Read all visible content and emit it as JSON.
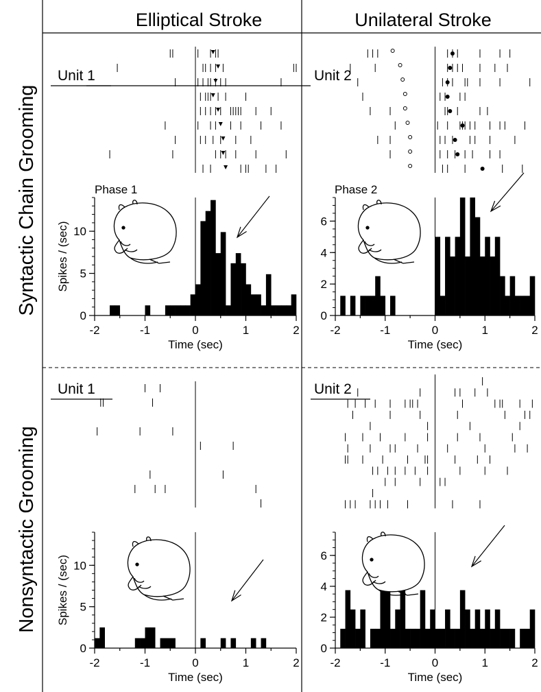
{
  "columns": [
    "Elliptical Stroke",
    "Unilateral Stroke"
  ],
  "rows": [
    "Syntactic Chain Grooming",
    "Nonsyntactic Grooming"
  ],
  "colors": {
    "ink": "#000000",
    "background": "#ffffff"
  },
  "icons": [
    "rat-grooming-icon",
    "arrow-icon"
  ],
  "chart_data": [
    {
      "type": "bar",
      "panel": "syntactic-elliptical",
      "unit_label": "Unit 1",
      "phase_label": "Phase 1",
      "ylabel": "Spikes / (sec)",
      "xlabel": "Time (sec)",
      "xlim": [
        -2,
        2
      ],
      "ylim": [
        0,
        14
      ],
      "xticks": [
        -2,
        -1,
        0,
        1,
        2
      ],
      "yticks": [
        0,
        5,
        10
      ],
      "bin_width": 0.1,
      "bins": [
        {
          "x": -1.7,
          "y": 1.2
        },
        {
          "x": -1.6,
          "y": 1.2
        },
        {
          "x": -1.0,
          "y": 1.2
        },
        {
          "x": -0.6,
          "y": 1.2
        },
        {
          "x": -0.5,
          "y": 1.2
        },
        {
          "x": -0.4,
          "y": 1.2
        },
        {
          "x": -0.3,
          "y": 1.2
        },
        {
          "x": -0.2,
          "y": 1.2
        },
        {
          "x": -0.1,
          "y": 2.5
        },
        {
          "x": 0.0,
          "y": 3.7
        },
        {
          "x": 0.1,
          "y": 11.2
        },
        {
          "x": 0.2,
          "y": 12.4
        },
        {
          "x": 0.3,
          "y": 13.7
        },
        {
          "x": 0.4,
          "y": 7.4
        },
        {
          "x": 0.5,
          "y": 9.9
        },
        {
          "x": 0.6,
          "y": 1.2
        },
        {
          "x": 0.7,
          "y": 6.2
        },
        {
          "x": 0.8,
          "y": 7.4
        },
        {
          "x": 0.9,
          "y": 6.2
        },
        {
          "x": 1.0,
          "y": 3.7
        },
        {
          "x": 1.1,
          "y": 2.5
        },
        {
          "x": 1.2,
          "y": 2.5
        },
        {
          "x": 1.3,
          "y": 1.2
        },
        {
          "x": 1.4,
          "y": 4.9
        },
        {
          "x": 1.5,
          "y": 1.2
        },
        {
          "x": 1.6,
          "y": 1.2
        },
        {
          "x": 1.7,
          "y": 1.2
        },
        {
          "x": 1.8,
          "y": 1.2
        },
        {
          "x": 1.9,
          "y": 2.5
        }
      ],
      "raster": [
        {
          "spikes": [
            -0.5,
            -0.45,
            0.05,
            0.3,
            0.4,
            0.45
          ],
          "marker": 0.35
        },
        {
          "spikes": [
            -1.55,
            0.15,
            0.2,
            0.3,
            0.4,
            0.55,
            1.95,
            2.0
          ],
          "marker": 0.45
        },
        {
          "spikes": [
            -0.4,
            0.05,
            0.15,
            0.25,
            0.3,
            0.4,
            0.5,
            0.6,
            1.7
          ],
          "marker": 0.4
        },
        {
          "spikes": [
            0.1,
            0.2,
            0.25,
            0.3,
            0.45,
            0.6,
            1.0
          ],
          "marker": 0.35
        },
        {
          "spikes": [
            0.0,
            0.1,
            0.2,
            0.3,
            0.4,
            0.5,
            0.7,
            0.75,
            0.8,
            0.85,
            0.9,
            1.2,
            1.5
          ],
          "marker": 0.45
        },
        {
          "spikes": [
            -0.6,
            0.05,
            0.3,
            0.4,
            0.7,
            0.9,
            1.3,
            1.7
          ],
          "marker": 0.5
        },
        {
          "spikes": [
            -0.4,
            0.1,
            0.2,
            0.35,
            0.5,
            0.8,
            1.1
          ],
          "marker": 0.55
        },
        {
          "spikes": [
            -1.7,
            -0.45,
            0.0,
            0.4,
            0.5,
            0.6,
            0.8,
            1.2,
            1.8
          ],
          "marker": 0.55
        },
        {
          "spikes": [
            0.15,
            0.3,
            0.9,
            1.0,
            1.05,
            1.4,
            1.6
          ],
          "marker": 0.6
        }
      ]
    },
    {
      "type": "bar",
      "panel": "syntactic-unilateral",
      "unit_label": "Unit 2",
      "phase_label": "Phase 2",
      "ylabel": "",
      "xlabel": "Time (sec)",
      "xlim": [
        -2,
        2
      ],
      "ylim": [
        0,
        7.5
      ],
      "xticks": [
        -2,
        -1,
        0,
        1,
        2
      ],
      "yticks": [
        0,
        2,
        4,
        6
      ],
      "bin_width": 0.1,
      "bins": [
        {
          "x": -1.9,
          "y": 1.25
        },
        {
          "x": -1.7,
          "y": 1.25
        },
        {
          "x": -1.5,
          "y": 1.25
        },
        {
          "x": -1.4,
          "y": 1.25
        },
        {
          "x": -1.3,
          "y": 1.25
        },
        {
          "x": -1.2,
          "y": 2.5
        },
        {
          "x": -1.1,
          "y": 1.25
        },
        {
          "x": -0.9,
          "y": 1.25
        },
        {
          "x": 0.0,
          "y": 5.0
        },
        {
          "x": 0.1,
          "y": 1.25
        },
        {
          "x": 0.2,
          "y": 5.0
        },
        {
          "x": 0.3,
          "y": 3.75
        },
        {
          "x": 0.4,
          "y": 5.0
        },
        {
          "x": 0.5,
          "y": 7.5
        },
        {
          "x": 0.6,
          "y": 3.75
        },
        {
          "x": 0.7,
          "y": 7.5
        },
        {
          "x": 0.8,
          "y": 6.25
        },
        {
          "x": 0.9,
          "y": 3.75
        },
        {
          "x": 1.0,
          "y": 5.0
        },
        {
          "x": 1.1,
          "y": 3.75
        },
        {
          "x": 1.2,
          "y": 5.0
        },
        {
          "x": 1.3,
          "y": 2.5
        },
        {
          "x": 1.4,
          "y": 1.25
        },
        {
          "x": 1.5,
          "y": 2.5
        },
        {
          "x": 1.6,
          "y": 1.25
        },
        {
          "x": 1.7,
          "y": 1.25
        },
        {
          "x": 1.8,
          "y": 1.25
        },
        {
          "x": 1.9,
          "y": 2.5
        }
      ],
      "raster": [
        {
          "spikes": [
            -1.35,
            -1.25,
            -1.15,
            0.25,
            0.35,
            0.45,
            0.9,
            1.3,
            1.5
          ],
          "marker": 0.35,
          "start": -0.85
        },
        {
          "spikes": [
            -1.7,
            -1.2,
            0.25,
            0.35,
            0.45,
            0.55,
            0.9,
            1.2,
            1.45
          ],
          "marker": 0.3,
          "start": -0.7
        },
        {
          "spikes": [
            -1.55,
            0.15,
            0.25,
            0.35,
            0.6,
            0.65,
            0.9,
            1.3,
            1.9
          ],
          "marker": 0.25,
          "start": -0.65
        },
        {
          "spikes": [
            -1.45,
            0.1,
            0.2,
            0.5,
            0.6
          ],
          "marker": 0.25,
          "start": -0.6
        },
        {
          "spikes": [
            -1.3,
            -0.9,
            0.2,
            0.25,
            0.45,
            0.9,
            1.05
          ],
          "marker": 0.3,
          "start": -0.6
        },
        {
          "spikes": [
            -0.8,
            0.05,
            0.25,
            0.5,
            0.55,
            0.6,
            0.7,
            0.8,
            1.1,
            1.3,
            1.4,
            1.8
          ],
          "marker": 0.55,
          "start": -0.55
        },
        {
          "spikes": [
            -1.15,
            -0.9,
            0.1,
            0.2,
            0.35,
            0.7,
            0.8,
            1.1,
            1.6
          ],
          "marker": 0.4,
          "start": -0.5
        },
        {
          "spikes": [
            -0.9,
            0.1,
            0.25,
            0.4,
            0.6,
            0.75,
            1.1,
            1.3
          ],
          "marker": 0.45,
          "start": -0.5
        },
        {
          "spikes": [
            0.15,
            0.25,
            0.6,
            1.35,
            1.75
          ],
          "marker": 0.95,
          "start": -0.5
        }
      ]
    },
    {
      "type": "bar",
      "panel": "nonsyntactic-elliptical",
      "unit_label": "Unit 1",
      "ylabel": "Spikes / (sec)",
      "xlabel": "Time (sec)",
      "xlim": [
        -2,
        2
      ],
      "ylim": [
        0,
        14
      ],
      "xticks": [
        -2,
        -1,
        0,
        1,
        2
      ],
      "yticks": [
        0,
        5,
        10
      ],
      "bin_width": 0.1,
      "bins": [
        {
          "x": -2.0,
          "y": 1.2
        },
        {
          "x": -1.9,
          "y": 2.5
        },
        {
          "x": -1.2,
          "y": 1.2
        },
        {
          "x": -1.1,
          "y": 1.2
        },
        {
          "x": -1.0,
          "y": 2.5
        },
        {
          "x": -0.9,
          "y": 2.5
        },
        {
          "x": -0.7,
          "y": 1.2
        },
        {
          "x": -0.6,
          "y": 1.2
        },
        {
          "x": -0.5,
          "y": 1.2
        },
        {
          "x": 0.1,
          "y": 1.2
        },
        {
          "x": 0.5,
          "y": 1.2
        },
        {
          "x": 0.7,
          "y": 1.2
        },
        {
          "x": 1.1,
          "y": 1.2
        },
        {
          "x": 1.3,
          "y": 1.2
        }
      ],
      "raster": [
        {
          "spikes": [
            -1.0,
            -0.7
          ]
        },
        {
          "spikes": [
            -1.88,
            -1.83,
            -0.85
          ]
        },
        {
          "spikes": []
        },
        {
          "spikes": [
            -1.95,
            -1.1,
            -0.45
          ]
        },
        {
          "spikes": [
            0.1,
            0.75
          ]
        },
        {
          "spikes": []
        },
        {
          "spikes": [
            -0.9,
            0.55
          ]
        },
        {
          "spikes": [
            -1.2,
            -0.8,
            -0.6,
            1.2
          ]
        },
        {
          "spikes": [
            1.3
          ]
        }
      ]
    },
    {
      "type": "bar",
      "panel": "nonsyntactic-unilateral",
      "unit_label": "Unit 2",
      "ylabel": "",
      "xlabel": "Time (sec)",
      "xlim": [
        -2,
        2
      ],
      "ylim": [
        0,
        7.5
      ],
      "xticks": [
        -2,
        -1,
        0,
        1,
        2
      ],
      "yticks": [
        0,
        2,
        4,
        6
      ],
      "bin_width": 0.1,
      "bins": [
        {
          "x": -1.9,
          "y": 1.25
        },
        {
          "x": -1.8,
          "y": 3.75
        },
        {
          "x": -1.7,
          "y": 2.5
        },
        {
          "x": -1.6,
          "y": 1.25
        },
        {
          "x": -1.5,
          "y": 2.5
        },
        {
          "x": -1.3,
          "y": 1.25
        },
        {
          "x": -1.2,
          "y": 1.25
        },
        {
          "x": -1.1,
          "y": 3.75
        },
        {
          "x": -1.0,
          "y": 4.5
        },
        {
          "x": -0.9,
          "y": 1.25
        },
        {
          "x": -0.8,
          "y": 2.5
        },
        {
          "x": -0.7,
          "y": 3.75
        },
        {
          "x": -0.6,
          "y": 1.25
        },
        {
          "x": -0.5,
          "y": 1.25
        },
        {
          "x": -0.4,
          "y": 1.25
        },
        {
          "x": -0.3,
          "y": 3.75
        },
        {
          "x": -0.2,
          "y": 1.25
        },
        {
          "x": -0.1,
          "y": 2.5
        },
        {
          "x": 0.0,
          "y": 1.25
        },
        {
          "x": 0.1,
          "y": 1.25
        },
        {
          "x": 0.2,
          "y": 2.5
        },
        {
          "x": 0.3,
          "y": 1.25
        },
        {
          "x": 0.4,
          "y": 1.25
        },
        {
          "x": 0.5,
          "y": 3.75
        },
        {
          "x": 0.6,
          "y": 2.5
        },
        {
          "x": 0.7,
          "y": 1.25
        },
        {
          "x": 0.8,
          "y": 2.5
        },
        {
          "x": 0.9,
          "y": 1.25
        },
        {
          "x": 1.0,
          "y": 2.5
        },
        {
          "x": 1.1,
          "y": 1.25
        },
        {
          "x": 1.2,
          "y": 2.5
        },
        {
          "x": 1.3,
          "y": 1.25
        },
        {
          "x": 1.4,
          "y": 1.25
        },
        {
          "x": 1.5,
          "y": 1.25
        },
        {
          "x": 1.7,
          "y": 1.25
        },
        {
          "x": 1.8,
          "y": 1.25
        },
        {
          "x": 1.9,
          "y": 2.5
        }
      ],
      "raster": [
        {
          "spikes": [
            0.95
          ]
        },
        {
          "spikes": [
            -1.55,
            -0.3,
            0.0,
            0.4,
            0.5,
            0.8,
            1.05
          ]
        },
        {
          "spikes": [
            -1.75,
            -1.6,
            -1.4,
            -1.2,
            -0.9,
            -0.6,
            -0.5,
            -0.45,
            -0.35,
            0.55,
            1.2,
            1.3,
            1.35,
            1.7,
            1.95
          ]
        },
        {
          "spikes": [
            -1.65,
            -0.9,
            -0.3,
            0.0,
            0.45,
            1.4,
            1.8,
            1.9
          ]
        },
        {
          "spikes": [
            -1.3,
            -0.15,
            0.7,
            1.7
          ]
        },
        {
          "spikes": [
            -1.8,
            -1.45,
            -1.1,
            -0.6,
            -0.15,
            0.45,
            0.9,
            1.55
          ]
        },
        {
          "spikes": [
            -1.75,
            -1.3,
            -0.9,
            -0.8,
            -0.35,
            0.25,
            1.0,
            1.6,
            1.85
          ]
        },
        {
          "spikes": [
            -1.8,
            -1.75,
            -1.45,
            -1.05,
            -0.55,
            -0.2,
            -0.15,
            0.4,
            0.85,
            1.1
          ]
        },
        {
          "spikes": [
            -1.25,
            -1.15,
            -0.95,
            -0.8,
            -0.6,
            -0.4,
            -0.15,
            0.5,
            1.0,
            1.45
          ]
        },
        {
          "spikes": [
            -1.0,
            -0.8,
            -0.3,
            0.1,
            0.2
          ]
        },
        {
          "spikes": [
            -1.25
          ]
        },
        {
          "spikes": [
            -1.8,
            -1.7,
            -1.6,
            -1.3,
            -1.2,
            -1.1,
            -0.95,
            -0.55,
            0.35,
            0.9
          ]
        }
      ]
    }
  ]
}
